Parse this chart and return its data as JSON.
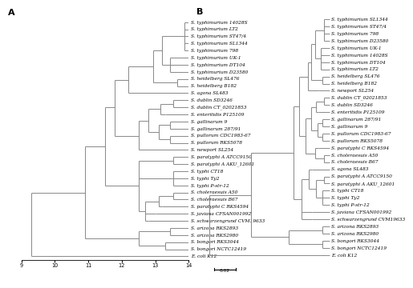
{
  "panel_A": {
    "label": "A",
    "xticks": [
      9,
      10,
      11,
      12,
      13,
      14
    ],
    "taxa": [
      "S. typhimurium 14028S",
      "S. typhimurium LT2",
      "S. typhimurium ST47/4",
      "S. typhimurium SL1344",
      "S. typhimurium 798",
      "S. typhimurium UK-1",
      "S. typhimurium DT104",
      "S. typhimurium D23580",
      "S. heidelberg SL476",
      "S. heidelberg B182",
      "S. agona SL483",
      "S. dublin SD3246",
      "S. dublin CT_02021853",
      "S. enteritidis P125109",
      "S. gallinarum 9",
      "S. gallinarum 287/91",
      "S. pullorum CDC1983-67",
      "S. pullorum RKS5078",
      "S. newport SL254",
      "S. paratyphi A ATCC9150",
      "S. paratyphi A AKU_12601",
      "S. typhi CT18",
      "S. typhi Ty2",
      "S. typhi P-str-12",
      "S. choleraesuis A50",
      "S. choleraesuis B67",
      "S. paratyphi C RKS4594",
      "S. javiana CFSAN001992",
      "S. schwarzengrund CVM19633",
      "S. arizona RKS2893",
      "S. arizona RKS2980",
      "S. bongori RKS3044",
      "S. bongori NCTC12419",
      "E. coli K12"
    ]
  },
  "panel_B": {
    "label": "B",
    "scale_bar": 0.02,
    "taxa": [
      "S. typhimurium SL1344",
      "S. typhimurium ST47/4",
      "S. typhimurium 798",
      "S. typhimurium D23580",
      "S. typhimurium UK-1",
      "S. typhimurium 14028S",
      "S. typhimurium DT104",
      "S. typhimurium LT2",
      "S. heidelberg SL476",
      "S. heidelberg B182",
      "S. newport SL254",
      "S. dublin CT_02021853",
      "S. dublin SD3246",
      "S. enteritidis P125109",
      "S. gallinarum 287/91",
      "S. gallinarum 9",
      "S. pullorum CDC1983-67",
      "S. pullorum RKS5078",
      "S. paratyphi C RKS4594",
      "S. choleraesuis A50",
      "S. choleraesuis B67",
      "S. agona SL483",
      "S. paratyphi A ATCC9150",
      "S. paratyphi A AKU_12601",
      "S. typhi CT18",
      "S. typhi Ty2",
      "S. typhi P-str-12",
      "S. javiana CFSAN001992",
      "S. schwarzengrund CVM19633",
      "S. arizona RKS2893",
      "S. arizona RKS2980",
      "S. bongori RKS3044",
      "S. bongori NCTC12419",
      "E. coli K12"
    ]
  },
  "font_size": 4.2,
  "line_color": "#888888",
  "line_width": 0.7,
  "bg_color": "#ffffff",
  "text_color": "#000000"
}
